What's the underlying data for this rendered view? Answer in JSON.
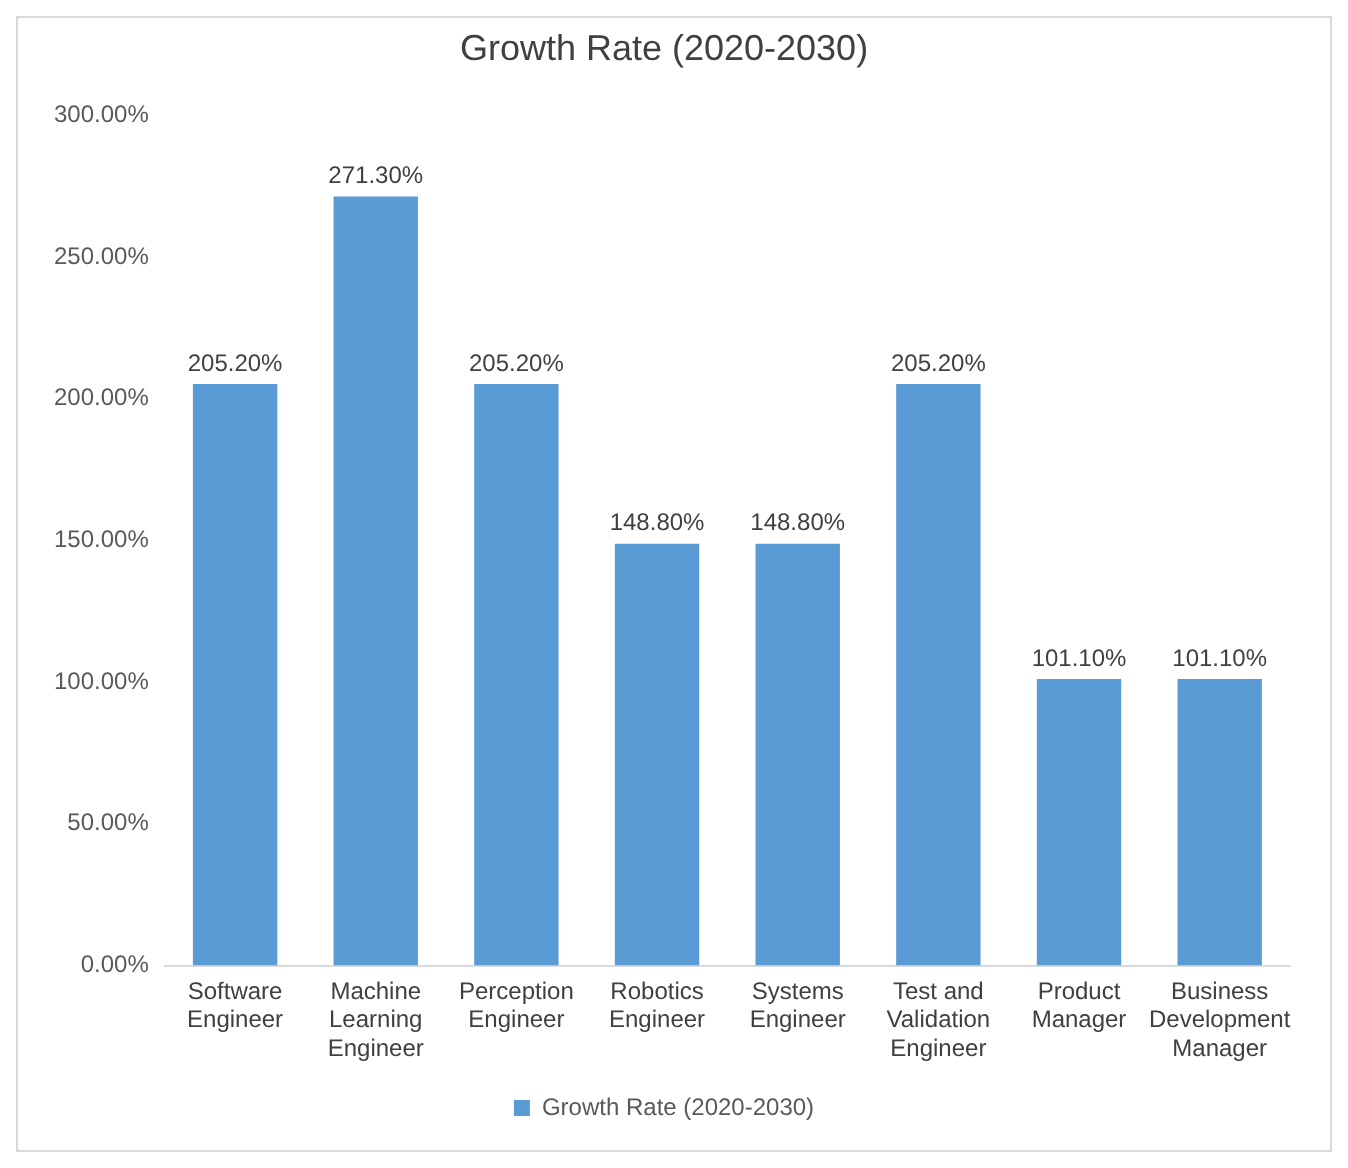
{
  "chart_data": {
    "type": "bar",
    "title": "Growth Rate (2020-2030)",
    "categories": [
      "Software Engineer",
      "Machine Learning Engineer",
      "Perception Engineer",
      "Robotics Engineer",
      "Systems Engineer",
      "Test and Validation Engineer",
      "Product Manager",
      "Business Development Manager"
    ],
    "series": [
      {
        "name": "Growth Rate (2020-2030)",
        "color": "#5b9bd5",
        "values": [
          205.2,
          271.3,
          205.2,
          148.8,
          148.8,
          205.2,
          101.1,
          101.1
        ],
        "value_labels": [
          "205.20%",
          "271.30%",
          "205.20%",
          "148.80%",
          "148.80%",
          "205.20%",
          "101.10%",
          "101.10%"
        ]
      }
    ],
    "ylim": [
      0,
      300
    ],
    "yticks": [
      {
        "value": 0,
        "label": "0.00%"
      },
      {
        "value": 50,
        "label": "50.00%"
      },
      {
        "value": 100,
        "label": "100.00%"
      },
      {
        "value": 150,
        "label": "150.00%"
      },
      {
        "value": 200,
        "label": "200.00%"
      },
      {
        "value": 250,
        "label": "250.00%"
      },
      {
        "value": 300,
        "label": "300.00%"
      }
    ],
    "legend": "bottom"
  }
}
